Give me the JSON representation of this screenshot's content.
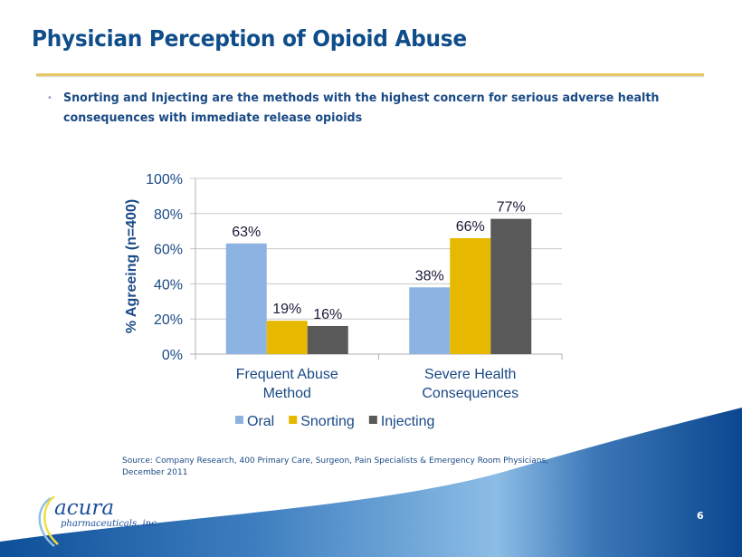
{
  "slide": {
    "title": "Physician Perception of Opioid Abuse",
    "bullet": "Snorting and Injecting are the methods with the highest concern for serious adverse health consequences with immediate release opioids",
    "source_line1": "Source: Company Research, 400 Primary Care, Surgeon, Pain Specialists & Emergency Room Physicians,",
    "source_line2": "December 2011",
    "page_number": "6",
    "logo_name": "acura",
    "logo_sub": "pharmaceuticals, inc."
  },
  "colors": {
    "title": "#0f4d8a",
    "rule": "#e6c860",
    "oral": "#8db3e2",
    "snorting": "#e6b800",
    "injecting": "#595959",
    "axis_text": "#1a4a85"
  },
  "chart_data": {
    "type": "bar",
    "title": "",
    "xlabel": "",
    "ylabel": "% Agreeing (n=400)",
    "ylim": [
      0,
      100
    ],
    "yticks": [
      "0%",
      "20%",
      "40%",
      "60%",
      "80%",
      "100%"
    ],
    "ytick_values": [
      0,
      20,
      40,
      60,
      80,
      100
    ],
    "grid": true,
    "legend_position": "bottom",
    "categories": [
      [
        "Frequent Abuse",
        "Method"
      ],
      [
        "Severe Health",
        "Consequences"
      ]
    ],
    "series": [
      {
        "name": "Oral",
        "values": [
          63,
          38
        ],
        "labels": [
          "63%",
          "38%"
        ],
        "color": "#8db3e2"
      },
      {
        "name": "Snorting",
        "values": [
          19,
          66
        ],
        "labels": [
          "19%",
          "66%"
        ],
        "color": "#e6b800"
      },
      {
        "name": "Injecting",
        "values": [
          16,
          77
        ],
        "labels": [
          "16%",
          "77%"
        ],
        "color": "#595959"
      }
    ]
  }
}
